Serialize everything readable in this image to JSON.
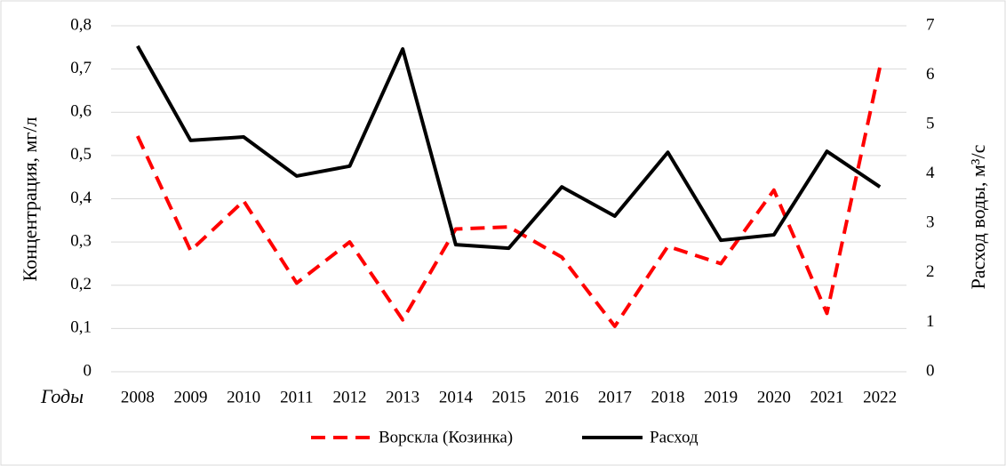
{
  "chart_data": {
    "type": "line",
    "x_label": "Годы",
    "y_label": "Концентрация, мг/л",
    "y2_label": "Расход воды, м³/с",
    "categories": [
      "2008",
      "2009",
      "2010",
      "2011",
      "2012",
      "2013",
      "2014",
      "2015",
      "2016",
      "2017",
      "2018",
      "2019",
      "2020",
      "2021",
      "2022"
    ],
    "series": [
      {
        "name": "Ворскла (Козинка)",
        "color": "#ff0000",
        "line_style": "dashed",
        "values": [
          0.545,
          0.28,
          0.395,
          0.205,
          0.3,
          0.12,
          0.33,
          0.335,
          0.265,
          0.105,
          0.29,
          0.25,
          0.42,
          0.135,
          0.705
        ]
      },
      {
        "name": "Расход",
        "color": "#000000",
        "line_style": "solid",
        "axis": "y2",
        "values": [
          6.59,
          4.68,
          4.75,
          3.96,
          4.16,
          6.53,
          2.57,
          2.5,
          3.74,
          3.15,
          4.44,
          2.66,
          2.77,
          4.46,
          3.74
        ]
      }
    ],
    "ylim": [
      0,
      0.8
    ],
    "yticks": [
      0,
      {
        "value": 0.1,
        "label": "0,1"
      },
      {
        "value": 0.2,
        "label": "0,2"
      },
      {
        "value": 0.3,
        "label": "0,3"
      },
      {
        "value": 0.4,
        "label": "0,4"
      },
      {
        "value": 0.5,
        "label": "0,5"
      },
      {
        "value": 0.6,
        "label": "0,6"
      },
      {
        "value": 0.7,
        "label": "0,7"
      },
      {
        "value": 0.8,
        "label": "0,8"
      }
    ],
    "y2lim": [
      0,
      7
    ],
    "y2ticks": [
      0,
      1,
      2,
      3,
      4,
      5,
      6,
      7
    ],
    "grid": true,
    "legend": "bottom"
  }
}
